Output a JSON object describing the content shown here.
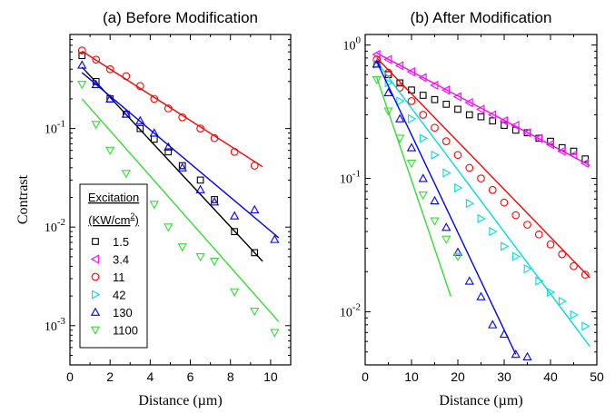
{
  "chart_data": [
    {
      "type": "scatter",
      "title": "(a) Before Modification",
      "xlabel": "Distance (µm)",
      "ylabel": "Contrast",
      "xlim": [
        0,
        11
      ],
      "ylim": [
        0.0004,
        0.9
      ],
      "yscale": "log",
      "xticks": [
        0,
        2,
        4,
        6,
        8,
        10
      ],
      "legend": {
        "title_line1": "Excitation",
        "title_line2_pre": "(KW/cm",
        "title_line2_sup": "2",
        "title_line2_post": ")",
        "placement": "bottom-left"
      },
      "series": [
        {
          "name": "1.5",
          "color": "#000000",
          "marker": "square",
          "x": [
            0.6,
            1.3,
            2.0,
            2.8,
            3.5,
            4.2,
            4.9,
            5.6,
            6.5,
            7.2,
            8.2,
            9.2
          ],
          "y": [
            0.55,
            0.3,
            0.2,
            0.14,
            0.1,
            0.078,
            0.058,
            0.042,
            0.03,
            0.019,
            0.009,
            0.0055
          ],
          "fit": {
            "x": [
              0.6,
              9.6
            ],
            "y": [
              0.42,
              0.0045
            ]
          }
        },
        {
          "name": "11",
          "color": "#ff0000",
          "marker": "circle",
          "x": [
            0.6,
            1.3,
            2.0,
            2.8,
            3.5,
            4.2,
            4.9,
            5.6,
            6.5,
            7.2,
            8.2,
            9.2
          ],
          "y": [
            0.62,
            0.5,
            0.4,
            0.34,
            0.27,
            0.2,
            0.16,
            0.13,
            0.1,
            0.08,
            0.058,
            0.042
          ],
          "fit": {
            "x": [
              0.6,
              9.6
            ],
            "y": [
              0.61,
              0.041
            ]
          }
        },
        {
          "name": "130",
          "color": "#0000ff",
          "marker": "triangle-up",
          "x": [
            0.6,
            1.3,
            2.0,
            2.8,
            3.5,
            4.2,
            4.9,
            5.6,
            6.5,
            7.2,
            8.2,
            9.2,
            10.2
          ],
          "y": [
            0.44,
            0.28,
            0.2,
            0.14,
            0.12,
            0.09,
            0.065,
            0.04,
            0.024,
            0.018,
            0.013,
            0.015,
            0.0075
          ],
          "fit": {
            "x": [
              0.6,
              10.4
            ],
            "y": [
              0.37,
              0.0078
            ]
          }
        },
        {
          "name": "1100",
          "color": "#33dd33",
          "marker": "triangle-down",
          "x": [
            0.6,
            1.3,
            2.0,
            2.8,
            3.5,
            4.2,
            4.9,
            5.6,
            6.5,
            7.2,
            8.2,
            9.2,
            10.2
          ],
          "y": [
            0.28,
            0.11,
            0.06,
            0.035,
            0.023,
            0.017,
            0.01,
            0.0063,
            0.005,
            0.0045,
            0.0022,
            0.0014,
            0.00085
          ],
          "fit": {
            "x": [
              0.6,
              10.4
            ],
            "y": [
              0.2,
              0.0011
            ]
          }
        }
      ]
    },
    {
      "type": "scatter",
      "title": "(b) After Modification",
      "xlabel": "Distance (µm)",
      "ylabel": "",
      "xlim": [
        0,
        50
      ],
      "ylim": [
        0.004,
        1.2
      ],
      "yscale": "log",
      "xticks": [
        0,
        10,
        20,
        30,
        40,
        50
      ],
      "series": [
        {
          "name": "1.5",
          "color": "#000000",
          "marker": "square",
          "x": [
            2.5,
            5,
            7.5,
            10,
            12.5,
            15,
            17.5,
            20,
            22.5,
            25,
            27.5,
            30,
            32.5,
            35,
            37.5,
            40,
            42.5,
            45,
            47.5
          ],
          "y": [
            0.72,
            0.6,
            0.52,
            0.46,
            0.42,
            0.39,
            0.36,
            0.33,
            0.3,
            0.29,
            0.27,
            0.25,
            0.23,
            0.22,
            0.2,
            0.19,
            0.17,
            0.16,
            0.14
          ],
          "fit": null
        },
        {
          "name": "3.4",
          "color": "#ff00ff",
          "marker": "triangle-left",
          "x": [
            2.5,
            5,
            7.5,
            10,
            12.5,
            15,
            17.5,
            20,
            22.5,
            25,
            27.5,
            30,
            32.5,
            35,
            37.5,
            40,
            42.5,
            45,
            47.5
          ],
          "y": [
            0.85,
            0.78,
            0.7,
            0.63,
            0.57,
            0.5,
            0.46,
            0.41,
            0.37,
            0.33,
            0.3,
            0.27,
            0.25,
            0.22,
            0.2,
            0.18,
            0.16,
            0.15,
            0.13
          ],
          "fit": {
            "x": [
              2.5,
              48.5
            ],
            "y": [
              0.87,
              0.125
            ]
          }
        },
        {
          "name": "11",
          "color": "#ff0000",
          "marker": "circle",
          "x": [
            2.5,
            5,
            7.5,
            10,
            12.5,
            15,
            17.5,
            20,
            22.5,
            25,
            27.5,
            30,
            32.5,
            35,
            37.5,
            40,
            42.5,
            45,
            47.5
          ],
          "y": [
            0.78,
            0.62,
            0.48,
            0.38,
            0.3,
            0.24,
            0.19,
            0.15,
            0.12,
            0.1,
            0.082,
            0.066,
            0.053,
            0.045,
            0.038,
            0.032,
            0.027,
            0.022,
            0.019
          ],
          "fit": {
            "x": [
              2.5,
              48.5
            ],
            "y": [
              0.8,
              0.018
            ]
          }
        },
        {
          "name": "42",
          "color": "#00dddd",
          "marker": "triangle-right",
          "x": [
            2.5,
            5,
            7.5,
            10,
            12.5,
            15,
            17.5,
            20,
            22.5,
            25,
            27.5,
            30,
            32.5,
            35,
            37.5,
            40,
            42.5,
            45,
            47.5
          ],
          "y": [
            0.72,
            0.52,
            0.38,
            0.28,
            0.2,
            0.15,
            0.11,
            0.085,
            0.065,
            0.05,
            0.04,
            0.031,
            0.026,
            0.021,
            0.017,
            0.014,
            0.012,
            0.0095,
            0.0078
          ],
          "fit": {
            "x": [
              2.5,
              48.5
            ],
            "y": [
              0.75,
              0.0055
            ]
          }
        },
        {
          "name": "130",
          "color": "#0000ff",
          "marker": "triangle-up",
          "x": [
            2.5,
            5,
            7.5,
            10,
            12.5,
            15,
            17.5,
            20,
            22.5,
            25,
            27.5,
            30,
            32.5,
            35
          ],
          "y": [
            0.72,
            0.44,
            0.28,
            0.17,
            0.1,
            0.068,
            0.043,
            0.028,
            0.017,
            0.013,
            0.008,
            0.0068,
            0.0048,
            0.0046
          ],
          "fit": {
            "x": [
              2.5,
              32.5
            ],
            "y": [
              0.75,
              0.0048
            ]
          }
        },
        {
          "name": "1100",
          "color": "#33dd33",
          "marker": "triangle-down",
          "x": [
            2.5,
            5,
            7.5,
            10,
            12.5,
            15,
            17.5,
            20
          ],
          "y": [
            0.55,
            0.32,
            0.2,
            0.13,
            0.075,
            0.048,
            0.035,
            0.026
          ],
          "fit": {
            "x": [
              2.5,
              18.5
            ],
            "y": [
              0.57,
              0.013
            ]
          }
        }
      ]
    }
  ],
  "legend_entries": [
    {
      "label": "1.5",
      "color": "#000000",
      "marker": "square"
    },
    {
      "label": "3.4",
      "color": "#ff00ff",
      "marker": "triangle-left"
    },
    {
      "label": "11",
      "color": "#ff0000",
      "marker": "circle"
    },
    {
      "label": "42",
      "color": "#00dddd",
      "marker": "triangle-right"
    },
    {
      "label": "130",
      "color": "#0000ff",
      "marker": "triangle-up"
    },
    {
      "label": "1100",
      "color": "#33dd33",
      "marker": "triangle-down"
    }
  ],
  "panel_a_yticks": [
    {
      "mant": "10",
      "exp": "-3",
      "value": 0.001
    },
    {
      "mant": "10",
      "exp": "-2",
      "value": 0.01
    },
    {
      "mant": "10",
      "exp": "-1",
      "value": 0.1
    }
  ],
  "panel_b_yticks": [
    {
      "label": "10",
      "exp": "-2",
      "value": 0.01
    },
    {
      "label": "10",
      "exp": "-1",
      "value": 0.1
    },
    {
      "label": "10",
      "exp": "0",
      "value": 1.0
    }
  ]
}
